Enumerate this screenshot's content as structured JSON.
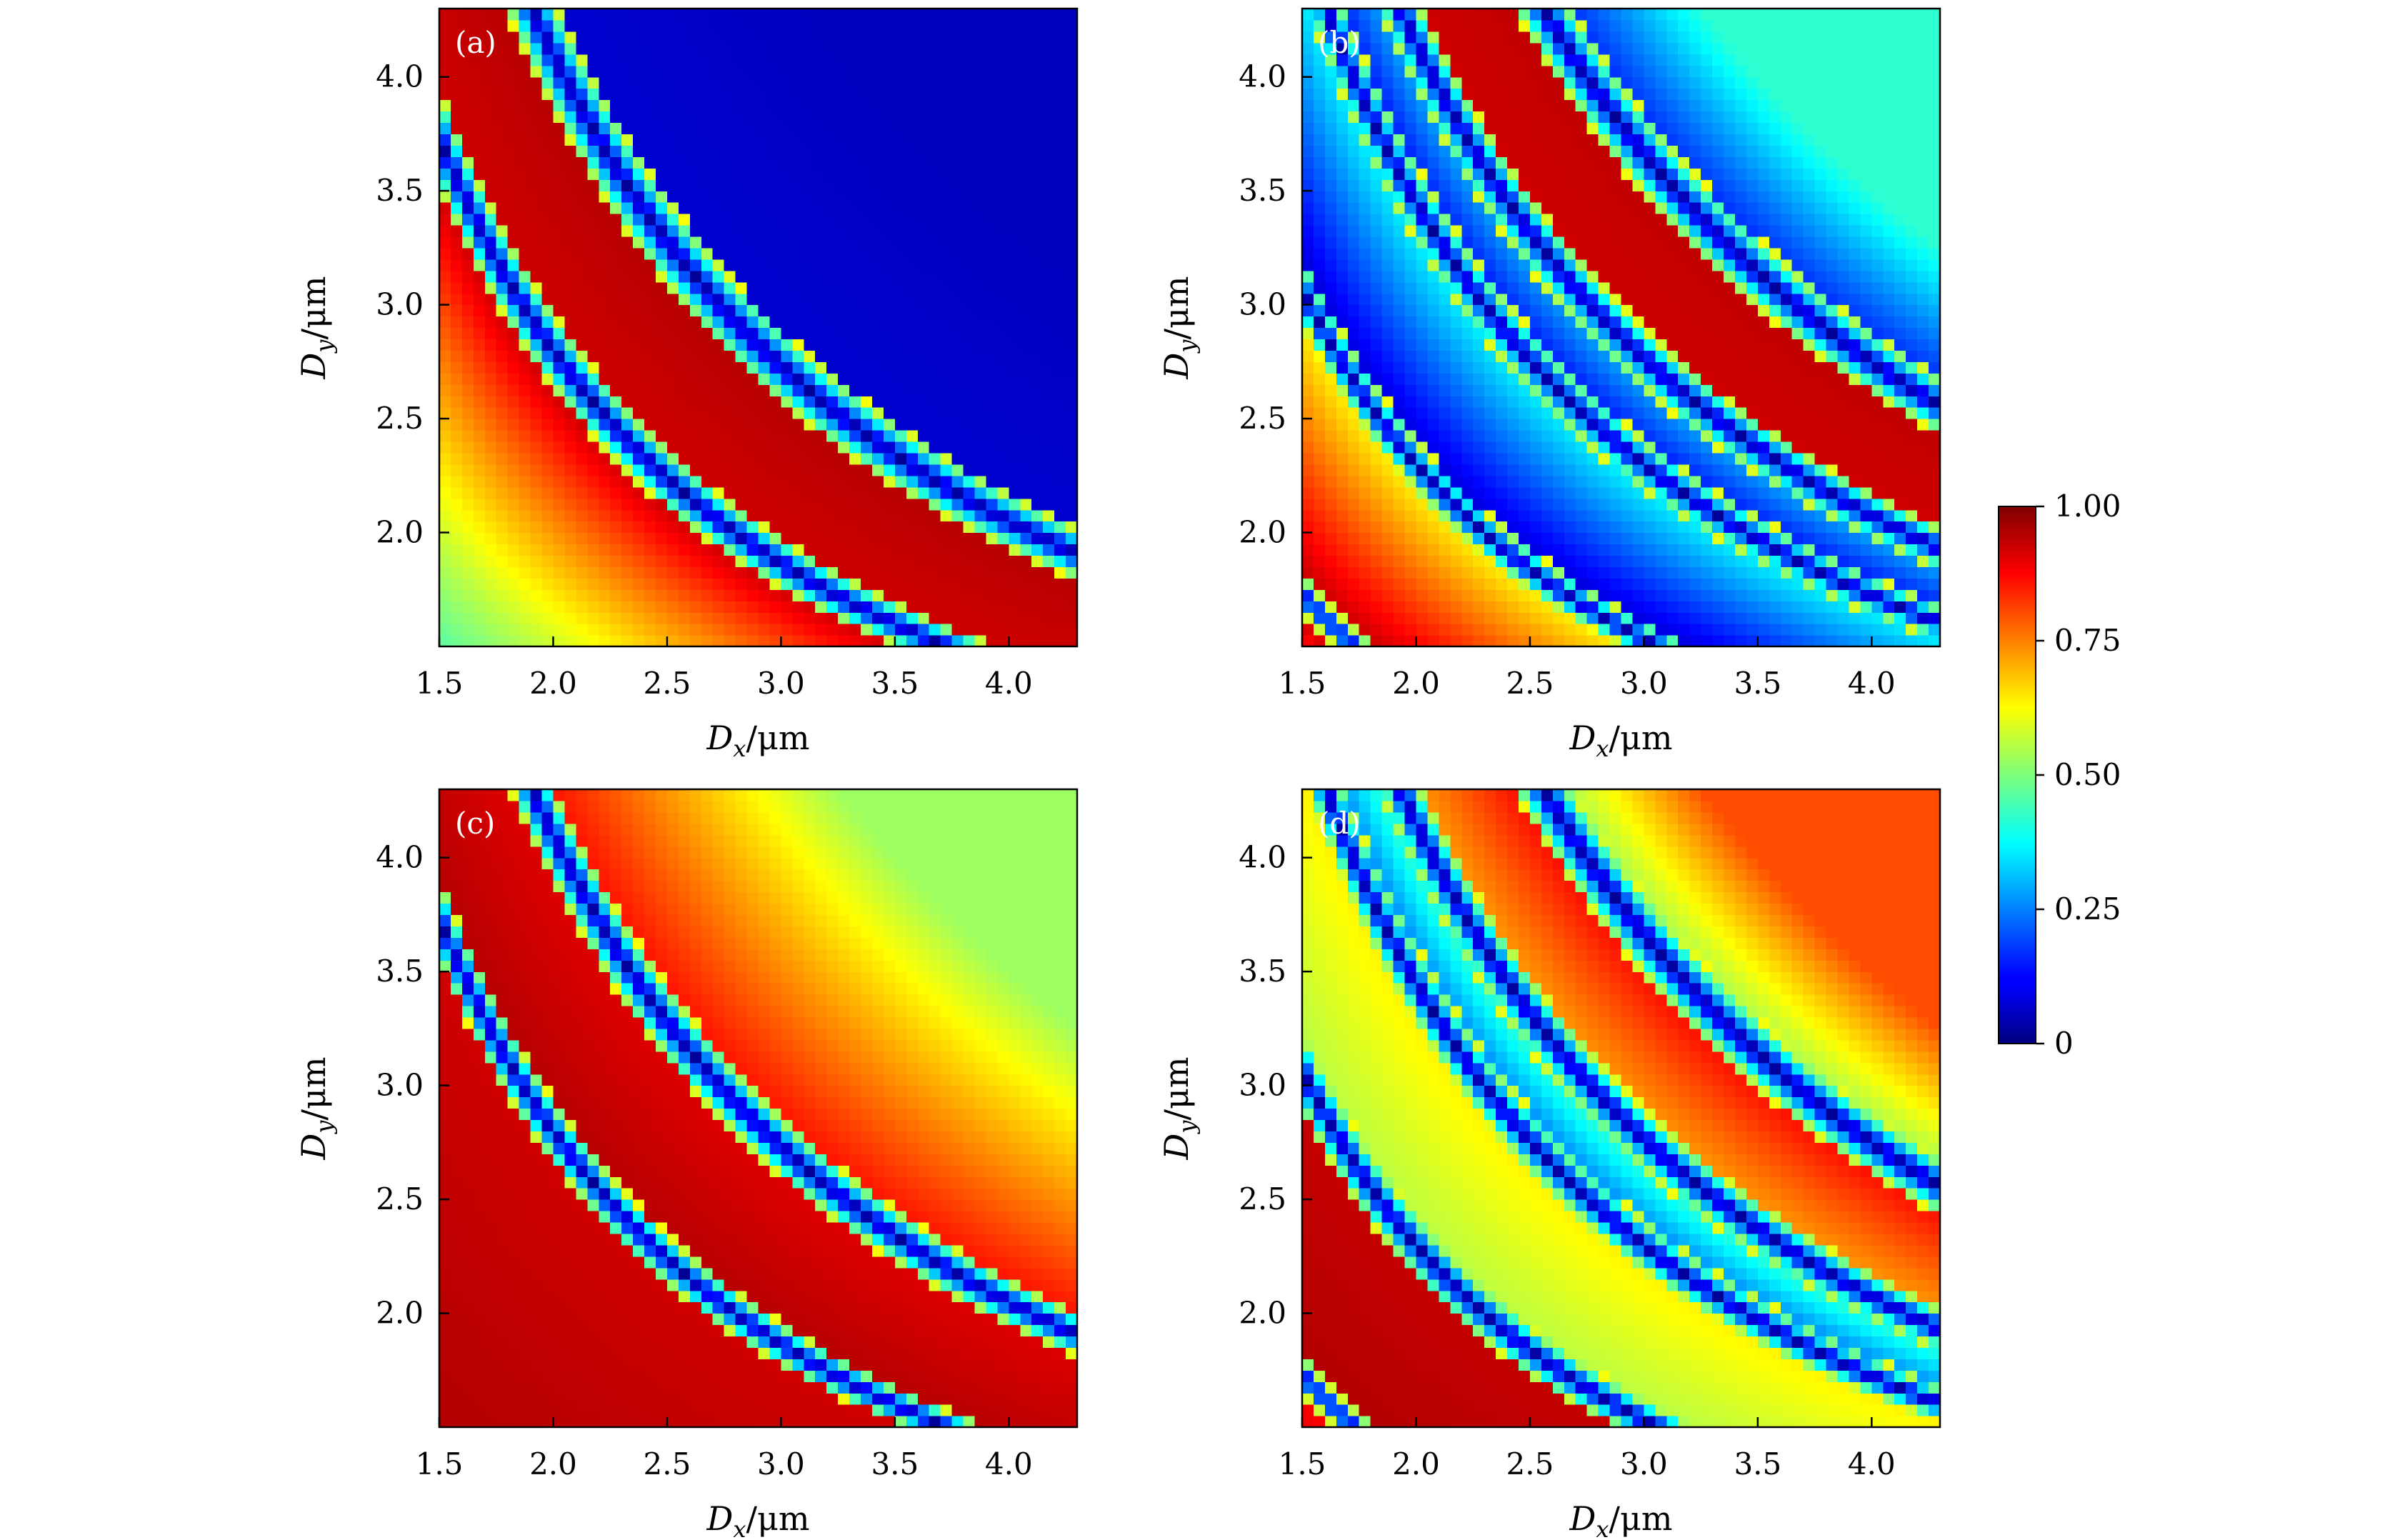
{
  "figure": {
    "colorbar": {
      "min": 0,
      "max": 1,
      "tick_values": [
        0,
        0.25,
        0.5,
        0.75,
        1.0
      ],
      "tick_labels": [
        "0",
        "0.25",
        "0.50",
        "0.75",
        "1.00"
      ],
      "colormap": "jet"
    }
  },
  "chart_data": [
    {
      "type": "heatmap",
      "panel_label": "(a)",
      "xlabel": "D_x/μm",
      "ylabel": "D_y/μm",
      "xlim": [
        1.5,
        4.3
      ],
      "ylim": [
        1.5,
        4.3
      ],
      "xticks": [
        1.5,
        2.0,
        2.5,
        3.0,
        3.5,
        4.0
      ],
      "xtick_labels": [
        "1.5",
        "2.0",
        "2.5",
        "3.0",
        "3.5",
        "4.0"
      ],
      "yticks": [
        2.0,
        2.5,
        3.0,
        3.5,
        4.0
      ],
      "ytick_labels": [
        "2.0",
        "2.5",
        "3.0",
        "3.5",
        "4.0"
      ],
      "resolution": 56,
      "zrange": [
        0,
        1
      ],
      "layers": [
        {
          "from": 0,
          "to": 5.6,
          "base": 0.12,
          "slope": 0.85
        },
        {
          "from": 5.6,
          "to": 8.2,
          "base": 0.92,
          "slope": 0.03
        },
        {
          "from": 8.2,
          "to": 14.0,
          "base": 0.08,
          "slope": -0.02
        }
      ],
      "lines": [
        {
          "c": 5.6,
          "width": 0.06
        },
        {
          "c": 8.2,
          "width": 0.06
        }
      ]
    },
    {
      "type": "heatmap",
      "panel_label": "(b)",
      "xlabel": "D_x/μm",
      "ylabel": "D_y/μm",
      "xlim": [
        1.5,
        4.3
      ],
      "ylim": [
        1.5,
        4.3
      ],
      "xticks": [
        1.5,
        2.0,
        2.5,
        3.0,
        3.5,
        4.0
      ],
      "xtick_labels": [
        "1.5",
        "2.0",
        "2.5",
        "3.0",
        "3.5",
        "4.0"
      ],
      "yticks": [
        2.0,
        2.5,
        3.0,
        3.5,
        4.0
      ],
      "ytick_labels": [
        "2.0",
        "2.5",
        "3.0",
        "3.5",
        "4.0"
      ],
      "resolution": 56,
      "zrange": [
        0,
        1
      ],
      "layers": [
        {
          "from": 0,
          "to": 2.6,
          "base": 0.12,
          "slope": 0.85
        },
        {
          "from": 2.6,
          "to": 4.6,
          "base": 0.95,
          "slope": -0.35
        },
        {
          "from": 4.6,
          "to": 6.9,
          "base": 0.06,
          "slope": 0.35
        },
        {
          "from": 6.9,
          "to": 8.3,
          "base": 0.1,
          "slope": 0.25
        },
        {
          "from": 8.3,
          "to": 11.0,
          "base": 0.92,
          "slope": 0.02
        },
        {
          "from": 11.0,
          "to": 14.0,
          "base": 0.12,
          "slope": 0.3
        }
      ],
      "lines": [
        {
          "c": 2.6,
          "width": 0.05
        },
        {
          "c": 4.6,
          "width": 0.05
        },
        {
          "c": 6.9,
          "width": 0.05
        },
        {
          "c": 8.3,
          "width": 0.05
        },
        {
          "c": 11.0,
          "width": 0.05
        }
      ]
    },
    {
      "type": "heatmap",
      "panel_label": "(c)",
      "xlabel": "D_x/μm",
      "ylabel": "D_y/μm",
      "xlim": [
        1.5,
        4.3
      ],
      "ylim": [
        1.5,
        4.3
      ],
      "xticks": [
        1.5,
        2.0,
        2.5,
        3.0,
        3.5,
        4.0
      ],
      "xtick_labels": [
        "1.5",
        "2.0",
        "2.5",
        "3.0",
        "3.5",
        "4.0"
      ],
      "yticks": [
        2.0,
        2.5,
        3.0,
        3.5,
        4.0
      ],
      "ytick_labels": [
        "2.0",
        "2.5",
        "3.0",
        "3.5",
        "4.0"
      ],
      "resolution": 56,
      "zrange": [
        0,
        1
      ],
      "layers": [
        {
          "from": 0,
          "to": 5.6,
          "base": 0.97,
          "slope": -0.05
        },
        {
          "from": 5.6,
          "to": 8.2,
          "base": 0.95,
          "slope": -0.05
        },
        {
          "from": 8.2,
          "to": 14.0,
          "base": 0.88,
          "slope": -0.35
        }
      ],
      "lines": [
        {
          "c": 5.6,
          "width": 0.05
        },
        {
          "c": 8.2,
          "width": 0.05
        }
      ]
    },
    {
      "type": "heatmap",
      "panel_label": "(d)",
      "xlabel": "D_x/μm",
      "ylabel": "D_y/μm",
      "xlim": [
        1.5,
        4.3
      ],
      "ylim": [
        1.5,
        4.3
      ],
      "xticks": [
        1.5,
        2.0,
        2.5,
        3.0,
        3.5,
        4.0
      ],
      "xtick_labels": [
        "1.5",
        "2.0",
        "2.5",
        "3.0",
        "3.5",
        "4.0"
      ],
      "yticks": [
        2.0,
        2.5,
        3.0,
        3.5,
        4.0
      ],
      "ytick_labels": [
        "2.0",
        "2.5",
        "3.0",
        "3.5",
        "4.0"
      ],
      "resolution": 56,
      "zrange": [
        0,
        1
      ],
      "layers": [
        {
          "from": 0,
          "to": 2.6,
          "base": 0.93,
          "slope": -0.05
        },
        {
          "from": 2.6,
          "to": 4.6,
          "base": 0.95,
          "slope": -0.02
        },
        {
          "from": 4.6,
          "to": 6.9,
          "base": 0.55,
          "slope": 0.1
        },
        {
          "from": 6.9,
          "to": 8.3,
          "base": 0.2,
          "slope": 0.3
        },
        {
          "from": 8.3,
          "to": 11.0,
          "base": 0.7,
          "slope": 0.2
        },
        {
          "from": 11.0,
          "to": 14.0,
          "base": 0.5,
          "slope": 0.3
        }
      ],
      "lines": [
        {
          "c": 2.6,
          "width": 0.05
        },
        {
          "c": 4.6,
          "width": 0.06
        },
        {
          "c": 6.9,
          "width": 0.05
        },
        {
          "c": 8.3,
          "width": 0.05
        },
        {
          "c": 11.0,
          "width": 0.05
        }
      ]
    }
  ]
}
